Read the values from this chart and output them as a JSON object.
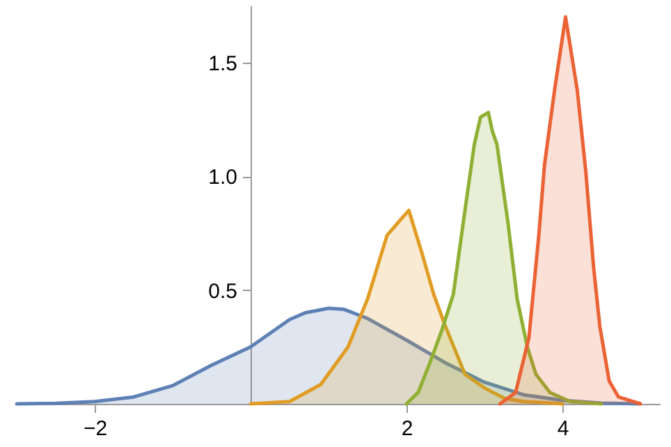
{
  "chart_data": {
    "type": "area",
    "xlim": [
      -3,
      5.25
    ],
    "ylim": [
      0,
      1.75
    ],
    "xticks": [
      {
        "value": -2,
        "label": "−2"
      },
      2,
      4
    ],
    "yticks": [
      {
        "value": 0.5,
        "label": "0.5"
      },
      {
        "value": 1,
        "label": "1.0"
      },
      {
        "value": 1.5,
        "label": "1.5"
      }
    ],
    "series": [
      {
        "color": "#5e81b5",
        "x": [
          -3,
          -2.5,
          -2,
          -1.5,
          -1,
          -0.5,
          0,
          0.5,
          0.7,
          1,
          1.2,
          1.5,
          2,
          2.5,
          3,
          3.5,
          4,
          4.5,
          5
        ],
        "values": [
          0,
          0.002,
          0.01,
          0.03,
          0.08,
          0.17,
          0.25,
          0.37,
          0.4,
          0.42,
          0.415,
          0.375,
          0.28,
          0.18,
          0.095,
          0.04,
          0.015,
          0.003,
          0
        ]
      },
      {
        "color": "#e19c24",
        "x": [
          0,
          0.5,
          0.9,
          1.25,
          1.5,
          1.75,
          1.9,
          2.03,
          2.2,
          2.35,
          2.5,
          2.75,
          3,
          3.25,
          3.5,
          4
        ],
        "values": [
          0,
          0.01,
          0.085,
          0.25,
          0.46,
          0.74,
          0.8,
          0.85,
          0.66,
          0.48,
          0.34,
          0.13,
          0.07,
          0.025,
          0.01,
          0
        ]
      },
      {
        "color": "#8fb032",
        "x": [
          2,
          2.15,
          2.3,
          2.45,
          2.6,
          2.75,
          2.87,
          2.95,
          3.05,
          3.1,
          3.16,
          3.3,
          3.42,
          3.55,
          3.66,
          3.84,
          4.1,
          4.5
        ],
        "values": [
          0,
          0.05,
          0.18,
          0.32,
          0.48,
          0.85,
          1.14,
          1.26,
          1.28,
          1.2,
          1.14,
          0.8,
          0.46,
          0.25,
          0.13,
          0.05,
          0.01,
          0
        ]
      },
      {
        "color": "#eb6235",
        "x": [
          3.2,
          3.4,
          3.57,
          3.7,
          3.77,
          3.9,
          4.04,
          4.19,
          4.3,
          4.4,
          4.48,
          4.6,
          4.72,
          5
        ],
        "values": [
          0,
          0.05,
          0.29,
          0.75,
          1.05,
          1.38,
          1.7,
          1.38,
          1.02,
          0.6,
          0.34,
          0.1,
          0.03,
          0
        ]
      }
    ]
  }
}
